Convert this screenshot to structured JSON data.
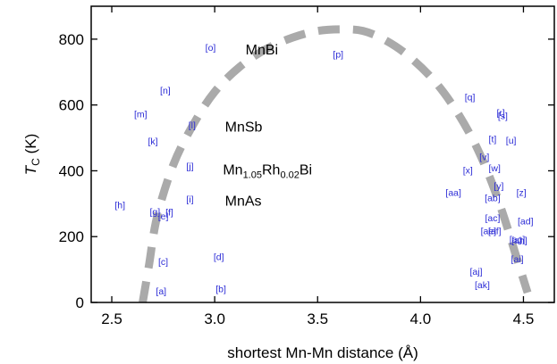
{
  "chart_data": {
    "type": "scatter",
    "title": "",
    "xlabel": "shortest Mn-Mn distance (Å)",
    "ylabel": {
      "main": "T",
      "sub": "C",
      "rest": " (K)"
    },
    "xlim": [
      2.4,
      4.65
    ],
    "ylim": [
      0,
      900
    ],
    "xticks": [
      2.5,
      3.0,
      3.5,
      4.0,
      4.5
    ],
    "xtick_labels": [
      "2.5",
      "3.0",
      "3.5",
      "4.0",
      "4.5"
    ],
    "yticks": [
      0,
      200,
      400,
      600,
      800
    ],
    "ytick_labels": [
      "0",
      "200",
      "400",
      "600",
      "800"
    ],
    "grid": false,
    "points": [
      {
        "label": "[a]",
        "x": 2.74,
        "y": 35
      },
      {
        "label": "[b]",
        "x": 3.03,
        "y": 42
      },
      {
        "label": "[c]",
        "x": 2.75,
        "y": 125
      },
      {
        "label": "[d]",
        "x": 3.02,
        "y": 140
      },
      {
        "label": "[e]",
        "x": 2.75,
        "y": 263
      },
      {
        "label": "[f]",
        "x": 2.78,
        "y": 275
      },
      {
        "label": "[g]",
        "x": 2.71,
        "y": 277
      },
      {
        "label": "[h]",
        "x": 2.54,
        "y": 297
      },
      {
        "label": "[i]",
        "x": 2.88,
        "y": 315
      },
      {
        "label": "[j]",
        "x": 2.88,
        "y": 415
      },
      {
        "label": "[k]",
        "x": 2.7,
        "y": 490
      },
      {
        "label": "[l]",
        "x": 2.89,
        "y": 540
      },
      {
        "label": "[m]",
        "x": 2.64,
        "y": 573
      },
      {
        "label": "[n]",
        "x": 2.76,
        "y": 645
      },
      {
        "label": "[o]",
        "x": 2.98,
        "y": 775
      },
      {
        "label": "[p]",
        "x": 3.6,
        "y": 755
      },
      {
        "label": "[q]",
        "x": 4.24,
        "y": 625
      },
      {
        "label": "[r]",
        "x": 4.39,
        "y": 578
      },
      {
        "label": "[s]",
        "x": 4.4,
        "y": 568
      },
      {
        "label": "[t]",
        "x": 4.35,
        "y": 497
      },
      {
        "label": "[u]",
        "x": 4.44,
        "y": 494
      },
      {
        "label": "[v]",
        "x": 4.31,
        "y": 443
      },
      {
        "label": "[w]",
        "x": 4.36,
        "y": 410
      },
      {
        "label": "[x]",
        "x": 4.23,
        "y": 402
      },
      {
        "label": "[y]",
        "x": 4.38,
        "y": 355
      },
      {
        "label": "[z]",
        "x": 4.49,
        "y": 335
      },
      {
        "label": "[aa]",
        "x": 4.16,
        "y": 335
      },
      {
        "label": "[ab]",
        "x": 4.35,
        "y": 318
      },
      {
        "label": "[ac]",
        "x": 4.35,
        "y": 258
      },
      {
        "label": "[ad]",
        "x": 4.51,
        "y": 248
      },
      {
        "label": "[ae]",
        "x": 4.33,
        "y": 218
      },
      {
        "label": "[af]",
        "x": 4.36,
        "y": 218
      },
      {
        "label": "[ag]",
        "x": 4.47,
        "y": 193
      },
      {
        "label": "[ah]",
        "x": 4.48,
        "y": 190
      },
      {
        "label": "[ai]",
        "x": 4.47,
        "y": 133
      },
      {
        "label": "[aj]",
        "x": 4.27,
        "y": 95
      },
      {
        "label": "[ak]",
        "x": 4.3,
        "y": 54
      }
    ],
    "annotations": [
      {
        "text": "MnBi",
        "x": 3.15,
        "y": 770
      },
      {
        "text": "MnSb",
        "x": 3.05,
        "y": 535
      },
      {
        "text": "MnAs",
        "x": 3.05,
        "y": 310
      }
    ],
    "annotation_rich": {
      "parts": [
        "Mn",
        "1.05",
        "Rh",
        "0.02",
        "Bi"
      ],
      "x": 3.04,
      "y": 405
    },
    "trend_curve": {
      "style": "dashed",
      "color": "#aaaaaa",
      "x": [
        2.65,
        2.68,
        2.72,
        2.8,
        2.9,
        3.0,
        3.12,
        3.25,
        3.38,
        3.5,
        3.62,
        3.72,
        3.82,
        3.93,
        4.05,
        4.15,
        4.25,
        4.33,
        4.4,
        4.46,
        4.5,
        4.52
      ],
      "y": [
        0,
        110,
        260,
        420,
        545,
        640,
        715,
        770,
        805,
        825,
        830,
        825,
        800,
        755,
        685,
        605,
        500,
        390,
        270,
        150,
        70,
        30
      ]
    }
  }
}
